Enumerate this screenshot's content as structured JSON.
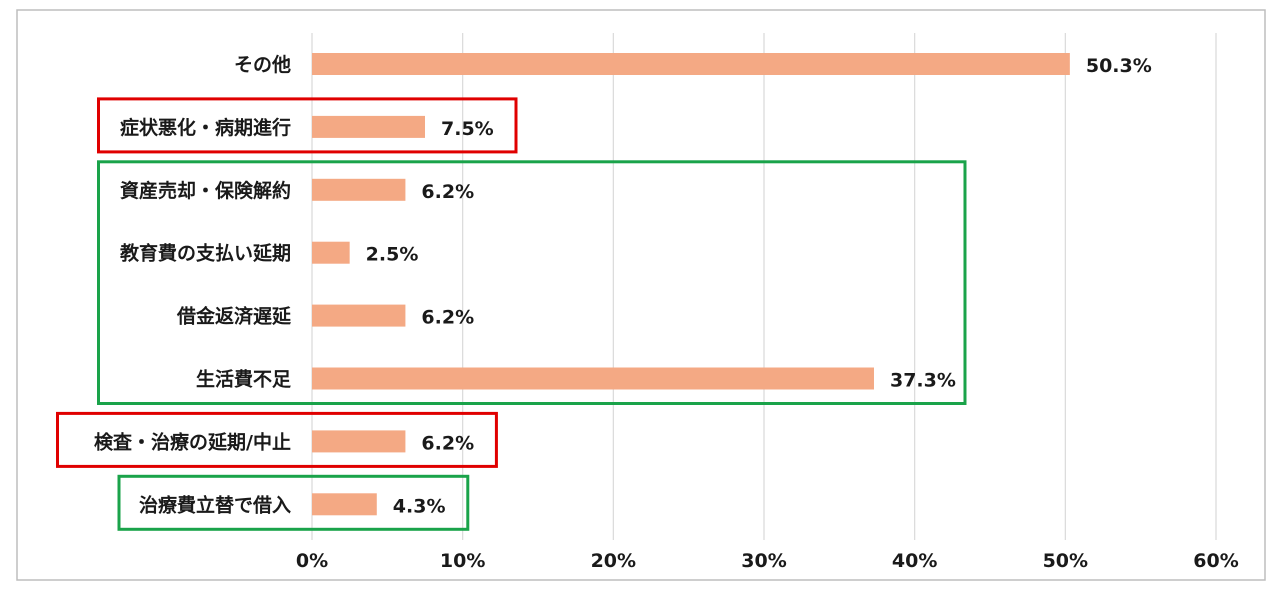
{
  "chart_data": {
    "type": "bar",
    "orientation": "horizontal",
    "title": "",
    "xlabel": "",
    "ylabel": "",
    "categories": [
      "その他",
      "症状悪化・病期進行",
      "資産売却・保険解約",
      "教育費の支払い延期",
      "借金返済遅延",
      "生活費不足",
      "検査・治療の延期/中止",
      "治療費立替で借入"
    ],
    "values": [
      50.3,
      7.5,
      6.2,
      2.5,
      6.2,
      37.3,
      6.2,
      4.3
    ],
    "value_labels": [
      "50.3%",
      "7.5%",
      "6.2%",
      "2.5%",
      "6.2%",
      "37.3%",
      "6.2%",
      "4.3%"
    ],
    "xlim": [
      0,
      60
    ],
    "xticks": [
      0,
      10,
      20,
      30,
      40,
      50,
      60
    ],
    "xtick_labels": [
      "0%",
      "10%",
      "20%",
      "30%",
      "40%",
      "50%",
      "60%"
    ],
    "grid": true,
    "legend": "none",
    "bar_color": "#f4a984",
    "highlight_groups": [
      {
        "color": "#e00000",
        "categories": [
          "症状悪化・病期進行"
        ]
      },
      {
        "color": "#1aa34a",
        "categories": [
          "資産売却・保険解約",
          "教育費の支払い延期",
          "借金返済遅延",
          "生活費不足"
        ]
      },
      {
        "color": "#e00000",
        "categories": [
          "検査・治療の延期/中止"
        ]
      },
      {
        "color": "#1aa34a",
        "categories": [
          "治療費立替で借入"
        ]
      }
    ]
  }
}
